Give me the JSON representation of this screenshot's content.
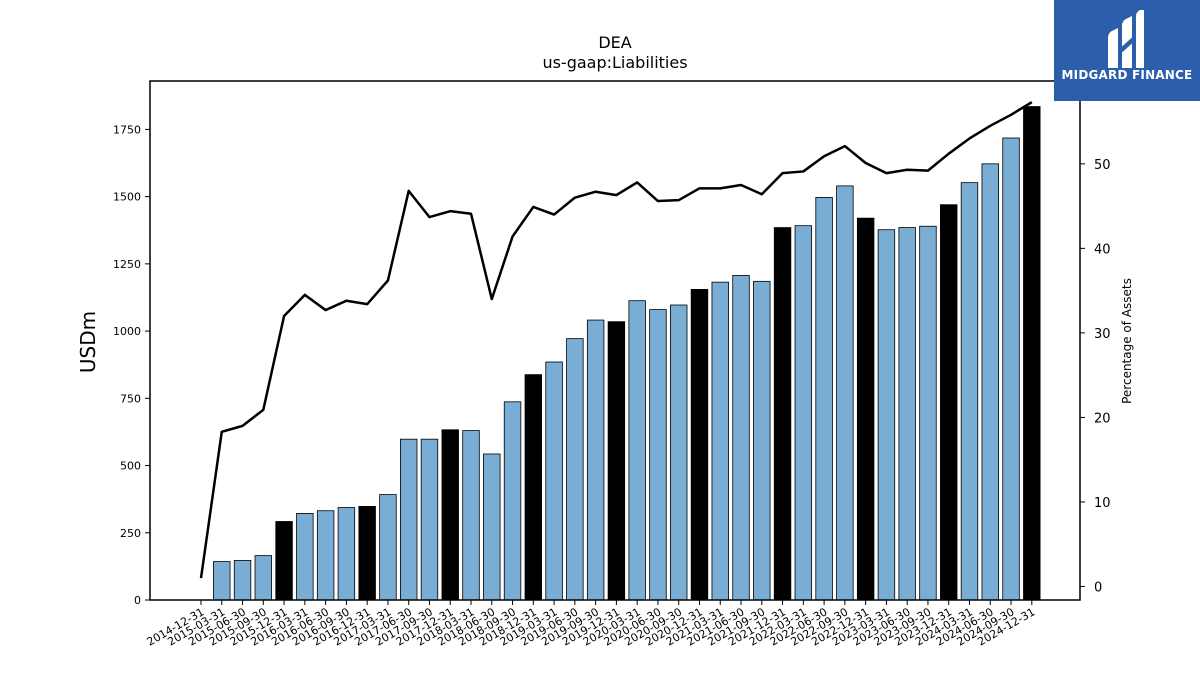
{
  "chart_data": {
    "type": "bar",
    "title": "DEA",
    "subtitle": "us-gaap:Liabilities",
    "ylabel": "USDm",
    "y2label": "Percentage of Assets",
    "ylim": [
      0,
      1930
    ],
    "y2lim": [
      -1.6,
      59.8
    ],
    "yticks": [
      0,
      250,
      500,
      750,
      1000,
      1250,
      1500,
      1750
    ],
    "y2ticks": [
      0,
      10,
      20,
      30,
      40,
      50
    ],
    "categories": [
      "2014-12-31",
      "2015-03-31",
      "2015-06-30",
      "2015-09-30",
      "2015-12-31",
      "2016-03-31",
      "2016-06-30",
      "2016-09-30",
      "2016-12-31",
      "2017-03-31",
      "2017-06-30",
      "2017-09-30",
      "2017-12-31",
      "2018-03-31",
      "2018-06-30",
      "2018-09-30",
      "2018-12-31",
      "2019-03-31",
      "2019-06-30",
      "2019-09-30",
      "2019-12-31",
      "2020-03-31",
      "2020-06-30",
      "2020-09-30",
      "2020-12-31",
      "2021-03-31",
      "2021-06-30",
      "2021-09-30",
      "2021-12-31",
      "2022-03-31",
      "2022-06-30",
      "2022-09-30",
      "2022-12-31",
      "2023-03-31",
      "2023-06-30",
      "2023-09-30",
      "2023-12-31",
      "2024-03-31",
      "2024-06-30",
      "2024-09-30",
      "2024-12-31"
    ],
    "series": [
      {
        "type": "bar",
        "values": [
          0,
          143,
          147,
          165,
          292,
          322,
          332,
          344,
          348,
          392,
          598,
          598,
          633,
          630,
          543,
          737,
          838,
          885,
          972,
          1041,
          1035,
          1113,
          1080,
          1097,
          1155,
          1182,
          1207,
          1185,
          1385,
          1392,
          1497,
          1540,
          1420,
          1377,
          1385,
          1390,
          1470,
          1552,
          1622,
          1718,
          1835
        ],
        "highlight": [
          false,
          false,
          false,
          false,
          true,
          false,
          false,
          false,
          true,
          false,
          false,
          false,
          true,
          false,
          false,
          false,
          true,
          false,
          false,
          false,
          true,
          false,
          false,
          false,
          true,
          false,
          false,
          false,
          true,
          false,
          false,
          false,
          true,
          false,
          false,
          false,
          true,
          false,
          false,
          false,
          true
        ],
        "color": "#7aadd4",
        "highlight_color": "#000000"
      },
      {
        "type": "line",
        "axis": "right",
        "values": [
          1.0,
          18.3,
          19.0,
          20.9,
          32.0,
          34.5,
          32.7,
          33.8,
          33.4,
          36.2,
          46.8,
          43.7,
          44.4,
          44.1,
          34.0,
          41.4,
          44.9,
          44.0,
          46.0,
          46.7,
          46.3,
          47.8,
          45.6,
          45.7,
          47.1,
          47.1,
          47.5,
          46.4,
          48.9,
          49.1,
          50.9,
          52.1,
          50.1,
          48.9,
          49.3,
          49.2,
          51.2,
          53.0,
          54.5,
          55.8,
          57.3
        ],
        "color": "#000000"
      }
    ],
    "grid": false,
    "legend": "none"
  },
  "logo": {
    "text": "MIDGARD FINANCE",
    "color": "#2d5eab"
  }
}
